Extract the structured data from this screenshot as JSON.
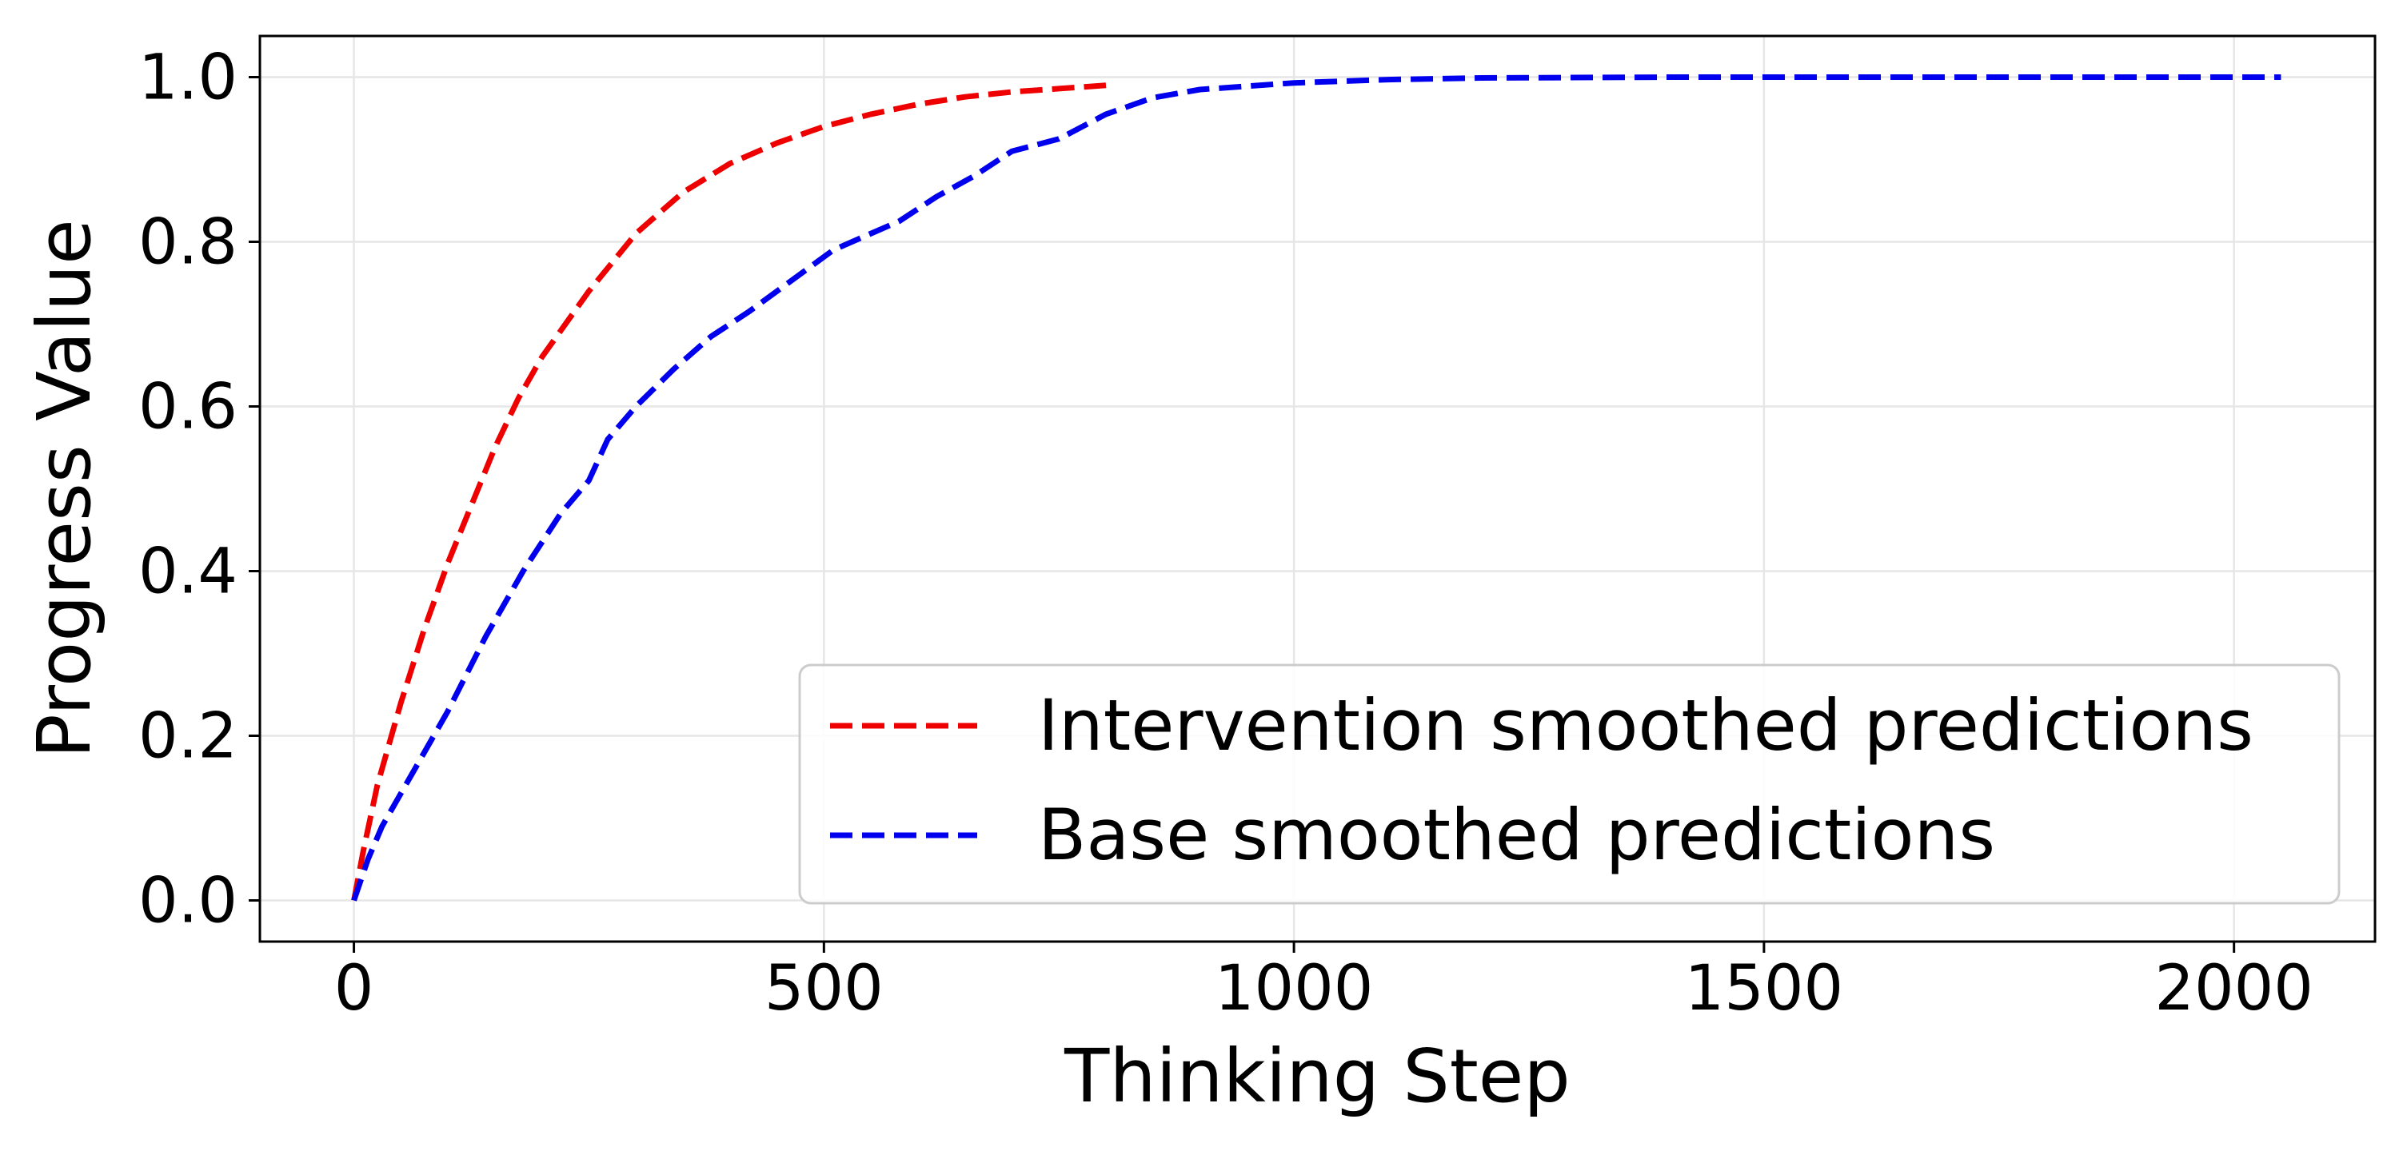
{
  "chart_data": {
    "type": "line",
    "title": "",
    "xlabel": "Thinking Step",
    "ylabel": "Progress Value",
    "xlim": [
      -100,
      2150
    ],
    "ylim": [
      -0.05,
      1.05
    ],
    "xticks": [
      0,
      500,
      1000,
      1500,
      2000
    ],
    "xtick_labels": [
      "0",
      "500",
      "1000",
      "1500",
      "2000"
    ],
    "yticks": [
      0.0,
      0.2,
      0.4,
      0.6,
      0.8,
      1.0
    ],
    "ytick_labels": [
      "0.0",
      "0.2",
      "0.4",
      "0.6",
      "0.8",
      "1.0"
    ],
    "grid": true,
    "legend_position": "lower-right",
    "series": [
      {
        "name": "Intervention smoothed predictions",
        "color": "#ee0000",
        "style": "dashed",
        "x": [
          0,
          10,
          25,
          50,
          75,
          100,
          125,
          150,
          175,
          200,
          250,
          300,
          350,
          400,
          450,
          500,
          550,
          600,
          650,
          700,
          750,
          800
        ],
        "y": [
          0.0,
          0.06,
          0.14,
          0.24,
          0.33,
          0.41,
          0.48,
          0.55,
          0.61,
          0.66,
          0.74,
          0.81,
          0.86,
          0.895,
          0.92,
          0.94,
          0.955,
          0.967,
          0.976,
          0.982,
          0.986,
          0.99
        ]
      },
      {
        "name": "Base smoothed predictions",
        "color": "#0000ee",
        "style": "dashed",
        "x": [
          0,
          15,
          30,
          60,
          100,
          140,
          180,
          220,
          250,
          270,
          300,
          340,
          380,
          420,
          450,
          480,
          510,
          540,
          580,
          620,
          660,
          700,
          750,
          800,
          850,
          900,
          1000,
          1100,
          1200,
          1400,
          1600,
          1800,
          2050
        ],
        "y": [
          0.0,
          0.05,
          0.09,
          0.15,
          0.23,
          0.32,
          0.4,
          0.47,
          0.51,
          0.56,
          0.6,
          0.645,
          0.685,
          0.715,
          0.74,
          0.765,
          0.79,
          0.805,
          0.825,
          0.855,
          0.88,
          0.91,
          0.925,
          0.955,
          0.975,
          0.985,
          0.993,
          0.997,
          0.999,
          1.0,
          1.0,
          1.0,
          1.0
        ]
      }
    ]
  }
}
